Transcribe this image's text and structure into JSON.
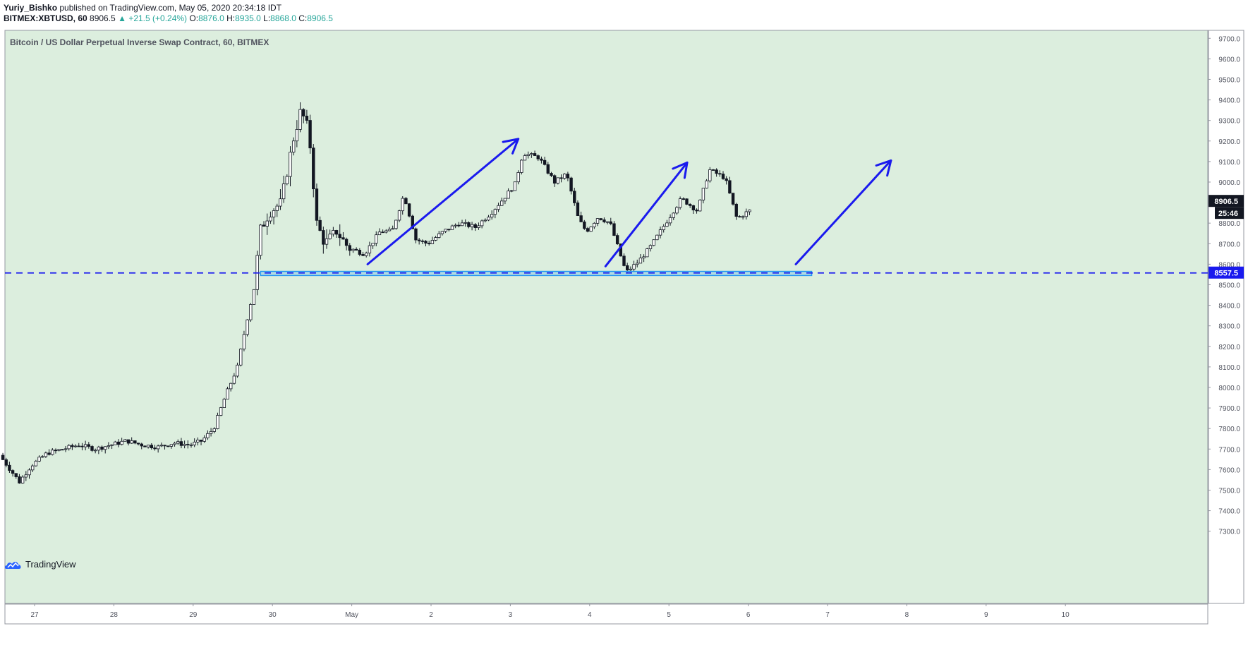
{
  "header": {
    "author": "Yuriy_Bishko",
    "published": "published on TradingView.com, May 05, 2020 20:34:18 IDT",
    "symbol": "BITMEX:XBTUSD, 60",
    "last": "8906.5",
    "change": "+21.5 (+0.24%)",
    "o_label": "O:",
    "o_value": "8876.0",
    "h_label": "H:",
    "h_value": "8935.0",
    "l_label": "L:",
    "l_value": "8868.0",
    "c_label": "C:",
    "c_value": "8906.5"
  },
  "brand": {
    "name": "TradingView"
  },
  "colors": {
    "background": "#dceede",
    "up": "#26a69a",
    "arrow": "#1a1aee",
    "zone": "#2196f3",
    "candle": "#131722"
  },
  "chart_data": {
    "type": "candlestick",
    "title": "Bitcoin / US Dollar Perpetual Inverse Swap Contract, 60, BITMEX",
    "ylim": [
      7250,
      9725
    ],
    "yticks": [
      9700,
      9600,
      9500,
      9400,
      9300,
      9200,
      9100,
      9000,
      8900,
      8800,
      8700,
      8600,
      8500,
      8400,
      8300,
      8200,
      8100,
      8000,
      7900,
      7800,
      7700,
      7600,
      7500,
      7400,
      7300
    ],
    "x_axis_labels": [
      "27",
      "28",
      "29",
      "30",
      "May",
      "2",
      "3",
      "4",
      "5",
      "6",
      "7",
      "8",
      "9",
      "10"
    ],
    "x_range_days": [
      26.6,
      40.05
    ],
    "current_price": "8906.5",
    "countdown": "25:46",
    "support_level": 8557.5,
    "support_label": "8557.5",
    "support_zone": {
      "from_day": 29.85,
      "to_day": 36.8,
      "low": 8545,
      "high": 8565
    },
    "arrows": [
      {
        "from": [
          31.2,
          8600
        ],
        "to": [
          33.1,
          9210
        ]
      },
      {
        "from": [
          34.2,
          8590
        ],
        "to": [
          35.23,
          9095
        ]
      },
      {
        "from": [
          36.6,
          8600
        ],
        "to": [
          37.8,
          9105
        ]
      }
    ],
    "trend_path": [
      [
        26.6,
        7670
      ],
      [
        26.85,
        7540
      ],
      [
        27.0,
        7620
      ],
      [
        27.2,
        7680
      ],
      [
        27.4,
        7700
      ],
      [
        27.6,
        7720
      ],
      [
        27.8,
        7700
      ],
      [
        28.0,
        7720
      ],
      [
        28.2,
        7740
      ],
      [
        28.4,
        7720
      ],
      [
        28.6,
        7710
      ],
      [
        28.8,
        7730
      ],
      [
        29.0,
        7720
      ],
      [
        29.15,
        7740
      ],
      [
        29.3,
        7800
      ],
      [
        29.45,
        7960
      ],
      [
        29.6,
        8100
      ],
      [
        29.72,
        8330
      ],
      [
        29.82,
        8500
      ],
      [
        29.88,
        8760
      ],
      [
        30.0,
        8850
      ],
      [
        30.15,
        8900
      ],
      [
        30.3,
        9200
      ],
      [
        30.4,
        9350
      ],
      [
        30.5,
        9250
      ],
      [
        30.6,
        8800
      ],
      [
        30.7,
        8700
      ],
      [
        30.85,
        8760
      ],
      [
        31.0,
        8680
      ],
      [
        31.2,
        8650
      ],
      [
        31.4,
        8760
      ],
      [
        31.55,
        8760
      ],
      [
        31.7,
        8940
      ],
      [
        31.85,
        8720
      ],
      [
        32.0,
        8700
      ],
      [
        32.2,
        8760
      ],
      [
        32.4,
        8800
      ],
      [
        32.6,
        8780
      ],
      [
        32.8,
        8850
      ],
      [
        33.0,
        8940
      ],
      [
        33.1,
        8990
      ],
      [
        33.2,
        9140
      ],
      [
        33.4,
        9120
      ],
      [
        33.6,
        9000
      ],
      [
        33.75,
        9040
      ],
      [
        33.9,
        8820
      ],
      [
        34.0,
        8760
      ],
      [
        34.15,
        8830
      ],
      [
        34.3,
        8800
      ],
      [
        34.4,
        8680
      ],
      [
        34.5,
        8560
      ],
      [
        34.65,
        8610
      ],
      [
        34.8,
        8680
      ],
      [
        35.0,
        8800
      ],
      [
        35.2,
        8920
      ],
      [
        35.4,
        8860
      ],
      [
        35.55,
        9060
      ],
      [
        35.75,
        9020
      ],
      [
        35.9,
        8820
      ],
      [
        36.05,
        8860
      ]
    ]
  }
}
